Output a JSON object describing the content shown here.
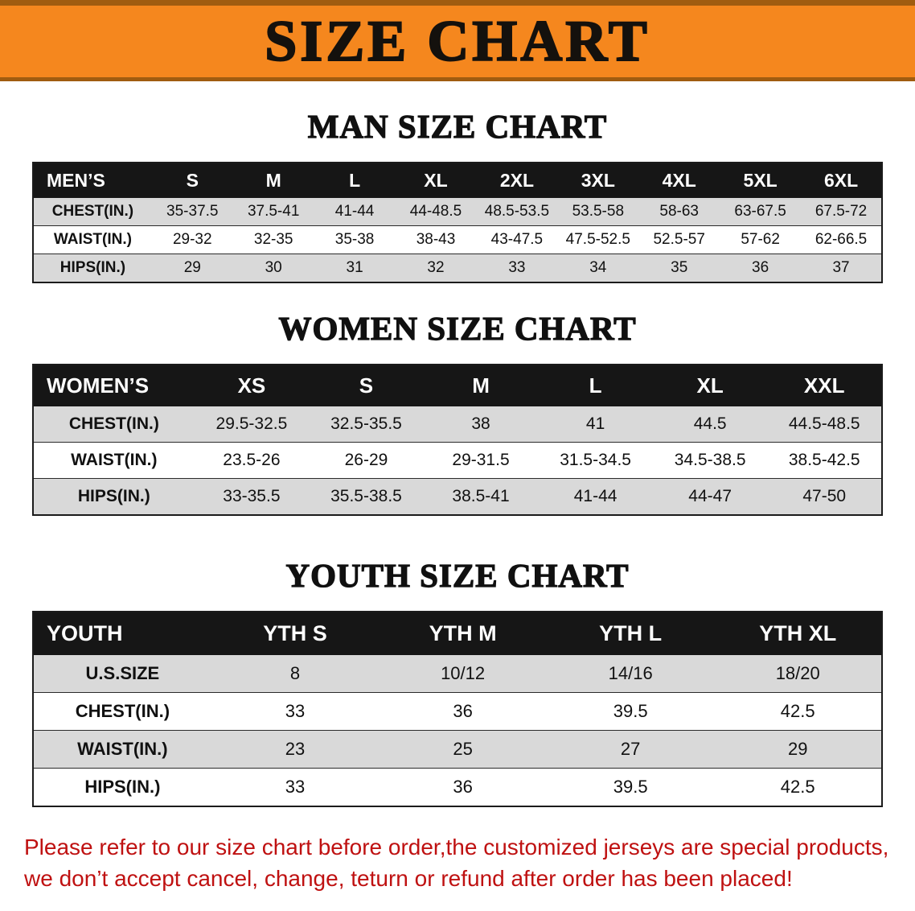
{
  "banner": {
    "title": "SIZE CHART"
  },
  "colors": {
    "banner_bg": "#f5871e",
    "banner_edge": "#a05c10",
    "header_black": "#161616",
    "row_shade": "#d9d9d9",
    "note_red": "#bf1111"
  },
  "sections": [
    {
      "heading": "MAN SIZE CHART",
      "table": {
        "header_label": "MEN’S",
        "columns": [
          "S",
          "M",
          "L",
          "XL",
          "2XL",
          "3XL",
          "4XL",
          "5XL",
          "6XL"
        ],
        "rows": [
          {
            "label": "CHEST(IN.)",
            "values": [
              "35-37.5",
              "37.5-41",
              "41-44",
              "44-48.5",
              "48.5-53.5",
              "53.5-58",
              "58-63",
              "63-67.5",
              "67.5-72"
            ]
          },
          {
            "label": "WAIST(IN.)",
            "values": [
              "29-32",
              "32-35",
              "35-38",
              "38-43",
              "43-47.5",
              "47.5-52.5",
              "52.5-57",
              "57-62",
              "62-66.5"
            ]
          },
          {
            "label": "HIPS(IN.)",
            "values": [
              "29",
              "30",
              "31",
              "32",
              "33",
              "34",
              "35",
              "36",
              "37"
            ]
          }
        ]
      }
    },
    {
      "heading": "WOMEN SIZE CHART",
      "table": {
        "header_label": "WOMEN’S",
        "columns": [
          "XS",
          "S",
          "M",
          "L",
          "XL",
          "XXL"
        ],
        "rows": [
          {
            "label": "CHEST(IN.)",
            "values": [
              "29.5-32.5",
              "32.5-35.5",
              "38",
              "41",
              "44.5",
              "44.5-48.5"
            ]
          },
          {
            "label": "WAIST(IN.)",
            "values": [
              "23.5-26",
              "26-29",
              "29-31.5",
              "31.5-34.5",
              "34.5-38.5",
              "38.5-42.5"
            ]
          },
          {
            "label": "HIPS(IN.)",
            "values": [
              "33-35.5",
              "35.5-38.5",
              "38.5-41",
              "41-44",
              "44-47",
              "47-50"
            ]
          }
        ]
      }
    },
    {
      "heading": "YOUTH SIZE CHART",
      "table": {
        "header_label": "YOUTH",
        "columns": [
          "YTH S",
          "YTH M",
          "YTH L",
          "YTH XL"
        ],
        "rows": [
          {
            "label": "U.S.SIZE",
            "values": [
              "8",
              "10/12",
              "14/16",
              "18/20"
            ]
          },
          {
            "label": "CHEST(IN.)",
            "values": [
              "33",
              "36",
              "39.5",
              "42.5"
            ]
          },
          {
            "label": "WAIST(IN.)",
            "values": [
              "23",
              "25",
              "27",
              "29"
            ]
          },
          {
            "label": "HIPS(IN.)",
            "values": [
              "33",
              "36",
              "39.5",
              "42.5"
            ]
          }
        ]
      }
    }
  ],
  "footer_note": {
    "line1": "Please refer to our size chart before order,the customized jerseys are special products,",
    "line2": "we don’t accept cancel, change, teturn or refund after order has been placed!"
  }
}
